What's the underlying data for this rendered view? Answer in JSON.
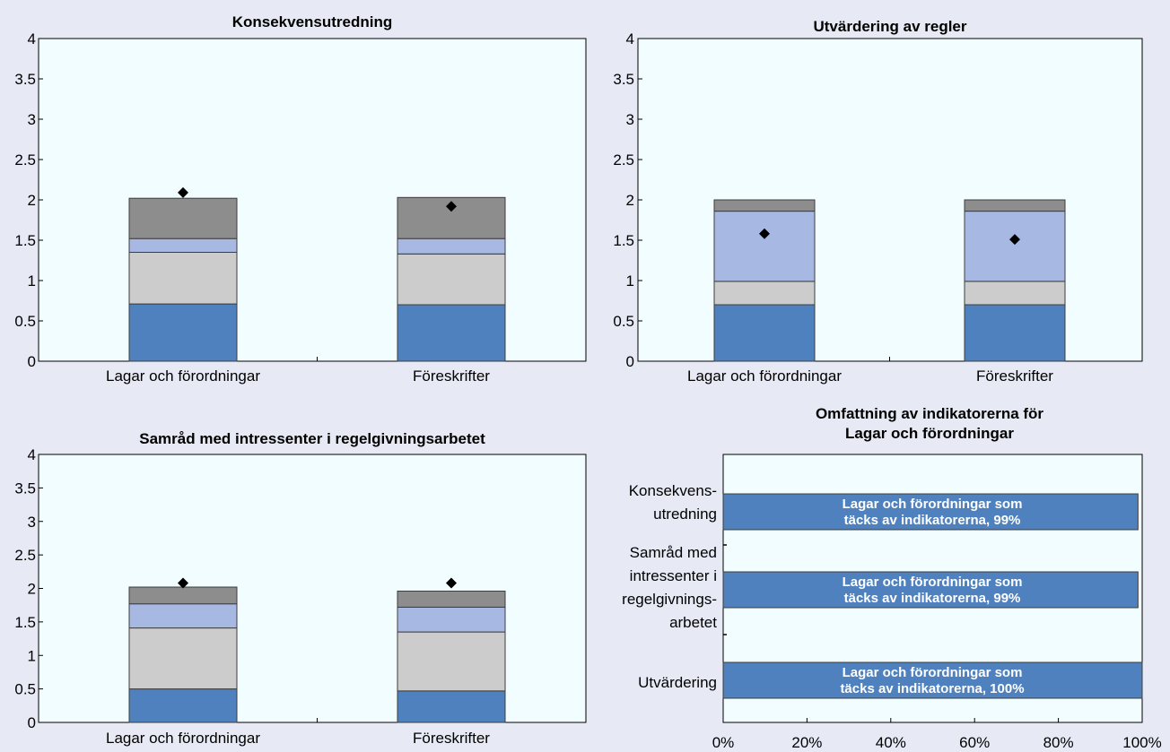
{
  "colors": {
    "page_bg": "#e7eaf5",
    "plot_bg": "#f2fdff",
    "series": [
      "#4e81bd",
      "#cccccc",
      "#a7b9e3",
      "#8d8d8d"
    ],
    "marker": "#000000",
    "coverage_bar": "#4e81bd"
  },
  "chart_data": [
    {
      "type": "bar",
      "stacked": true,
      "title": "Konsekvensutredning",
      "categories": [
        "Lagar och förordningar",
        "Föreskrifter"
      ],
      "ylim": [
        0,
        4
      ],
      "yticks": [
        "0",
        "0.5",
        "1",
        "1.5",
        "2",
        "2.5",
        "3",
        "3.5",
        "4"
      ],
      "series": [
        {
          "values": [
            0.71,
            0.7
          ]
        },
        {
          "values": [
            0.64,
            0.63
          ]
        },
        {
          "values": [
            0.17,
            0.19
          ]
        },
        {
          "values": [
            0.5,
            0.51
          ]
        }
      ],
      "markers": [
        2.09,
        1.92
      ],
      "grid": false
    },
    {
      "type": "bar",
      "stacked": true,
      "title": "Utvärdering av regler",
      "categories": [
        "Lagar och förordningar",
        "Föreskrifter"
      ],
      "ylim": [
        0,
        4
      ],
      "yticks": [
        "0",
        "0.5",
        "1",
        "1.5",
        "2",
        "2.5",
        "3",
        "3.5",
        "4"
      ],
      "series": [
        {
          "values": [
            0.7,
            0.7
          ]
        },
        {
          "values": [
            0.29,
            0.29
          ]
        },
        {
          "values": [
            0.87,
            0.87
          ]
        },
        {
          "values": [
            0.14,
            0.14
          ]
        }
      ],
      "markers": [
        1.58,
        1.51
      ],
      "grid": false
    },
    {
      "type": "bar",
      "stacked": true,
      "title": "Samråd med intressenter i regelgivningsarbetet",
      "categories": [
        "Lagar och förordningar",
        "Föreskrifter"
      ],
      "ylim": [
        0,
        4
      ],
      "yticks": [
        "0",
        "0.5",
        "1",
        "1.5",
        "2",
        "2.5",
        "3",
        "3.5",
        "4"
      ],
      "series": [
        {
          "values": [
            0.5,
            0.47
          ]
        },
        {
          "values": [
            0.91,
            0.88
          ]
        },
        {
          "values": [
            0.36,
            0.37
          ]
        },
        {
          "values": [
            0.25,
            0.24
          ]
        }
      ],
      "markers": [
        2.08,
        2.08
      ],
      "grid": false
    },
    {
      "type": "bar",
      "orientation": "horizontal",
      "title_lines": [
        "Omfattning av indikatorerna för",
        "Lagar och förordningar"
      ],
      "categories": [
        [
          "Konsekvens-",
          "utredning"
        ],
        [
          "Samråd med",
          "intressenter i",
          "regelgivnings-",
          "arbetet"
        ],
        [
          "Utvärdering"
        ]
      ],
      "values": [
        99,
        99,
        100
      ],
      "bar_labels": [
        [
          "Lagar och förordningar som",
          "täcks av indikatorerna, 99%"
        ],
        [
          "Lagar och förordningar som",
          "täcks av indikatorerna, 99%"
        ],
        [
          "Lagar och förordningar som",
          "täcks av indikatorerna, 100%"
        ]
      ],
      "xlim": [
        0,
        100
      ],
      "xticks": [
        "0%",
        "20%",
        "40%",
        "60%",
        "80%",
        "100%"
      ],
      "grid": false
    }
  ]
}
